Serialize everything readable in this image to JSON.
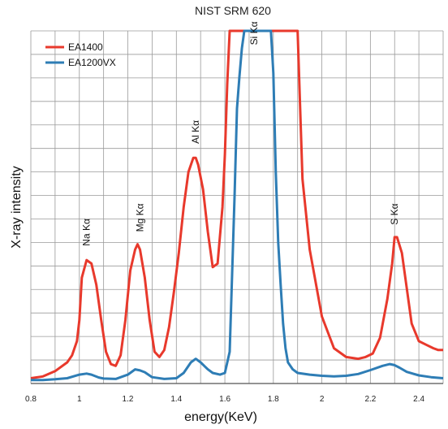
{
  "chart_data": {
    "type": "line",
    "title": "NIST SRM 620",
    "xlabel": "energy(KeV)",
    "ylabel": "X-ray intensity",
    "xlim": [
      0.8,
      2.5
    ],
    "ylim": [
      0,
      100
    ],
    "x_ticks": [
      "0.8",
      "1",
      "1.2",
      "1.4",
      "1.6",
      "1.8",
      "2",
      "2.2",
      "2.4"
    ],
    "grid": true,
    "legend": "top-left",
    "series": [
      {
        "name": "EA1400",
        "color": "#e8392c",
        "x": [
          0.8,
          0.85,
          0.9,
          0.95,
          0.97,
          0.99,
          1.0,
          1.01,
          1.03,
          1.05,
          1.07,
          1.09,
          1.11,
          1.13,
          1.15,
          1.17,
          1.19,
          1.21,
          1.23,
          1.24,
          1.25,
          1.27,
          1.29,
          1.31,
          1.33,
          1.35,
          1.37,
          1.39,
          1.41,
          1.43,
          1.45,
          1.47,
          1.48,
          1.49,
          1.51,
          1.53,
          1.55,
          1.57,
          1.59,
          1.6,
          1.61,
          1.62,
          1.63,
          1.9,
          1.92,
          1.95,
          2.0,
          2.05,
          2.1,
          2.15,
          2.18,
          2.21,
          2.24,
          2.27,
          2.29,
          2.3,
          2.31,
          2.33,
          2.35,
          2.37,
          2.4,
          2.43,
          2.46,
          2.48,
          2.5
        ],
        "values": [
          1.5,
          2,
          3.5,
          6,
          8,
          12,
          18,
          30,
          35,
          34,
          28,
          18,
          9,
          5.5,
          5,
          8,
          18,
          32,
          38,
          39.5,
          38,
          30,
          18,
          9,
          7.5,
          9.5,
          16,
          26,
          37,
          50,
          60,
          64,
          64,
          62,
          55,
          43,
          33,
          34,
          50,
          65,
          85,
          100,
          100,
          100,
          58,
          38,
          19,
          10,
          7.5,
          7,
          7.5,
          8.5,
          13,
          24,
          34,
          41.5,
          41.5,
          37,
          27,
          17,
          12,
          11,
          10,
          9.5,
          9.5
        ]
      },
      {
        "name": "EA1200VX",
        "color": "#2e7db5",
        "x": [
          0.8,
          0.85,
          0.9,
          0.95,
          1.0,
          1.03,
          1.05,
          1.08,
          1.1,
          1.15,
          1.2,
          1.23,
          1.25,
          1.27,
          1.3,
          1.35,
          1.4,
          1.43,
          1.46,
          1.48,
          1.5,
          1.53,
          1.55,
          1.58,
          1.6,
          1.62,
          1.64,
          1.65,
          1.66,
          1.67,
          1.68,
          1.79,
          1.8,
          1.81,
          1.82,
          1.83,
          1.84,
          1.85,
          1.86,
          1.88,
          1.9,
          1.95,
          2.0,
          2.05,
          2.1,
          2.15,
          2.2,
          2.25,
          2.28,
          2.3,
          2.32,
          2.35,
          2.4,
          2.45,
          2.5
        ],
        "values": [
          1,
          1,
          1.2,
          1.5,
          2.5,
          2.8,
          2.5,
          1.7,
          1.4,
          1.3,
          2.5,
          4,
          3.7,
          3.2,
          1.8,
          1.3,
          1.5,
          3,
          6,
          7,
          6,
          4,
          3,
          2.5,
          3,
          9,
          53,
          78,
          87,
          95,
          100,
          100,
          88,
          60,
          40,
          28,
          17,
          10,
          6,
          4,
          3,
          2.5,
          2.2,
          2,
          2.2,
          2.7,
          3.8,
          5,
          5.5,
          5.2,
          4.5,
          3.3,
          2.3,
          1.8,
          1.5
        ]
      }
    ],
    "annotations": [
      {
        "text": "Na Kα",
        "x": 1.03,
        "y": 39
      },
      {
        "text": "Mg Kα",
        "x": 1.25,
        "y": 43
      },
      {
        "text": "Al Kα",
        "x": 1.48,
        "y": 68
      },
      {
        "text": "Si Kα",
        "x": 1.72,
        "y": 96
      },
      {
        "text": "S Kα",
        "x": 2.3,
        "y": 45
      }
    ]
  }
}
